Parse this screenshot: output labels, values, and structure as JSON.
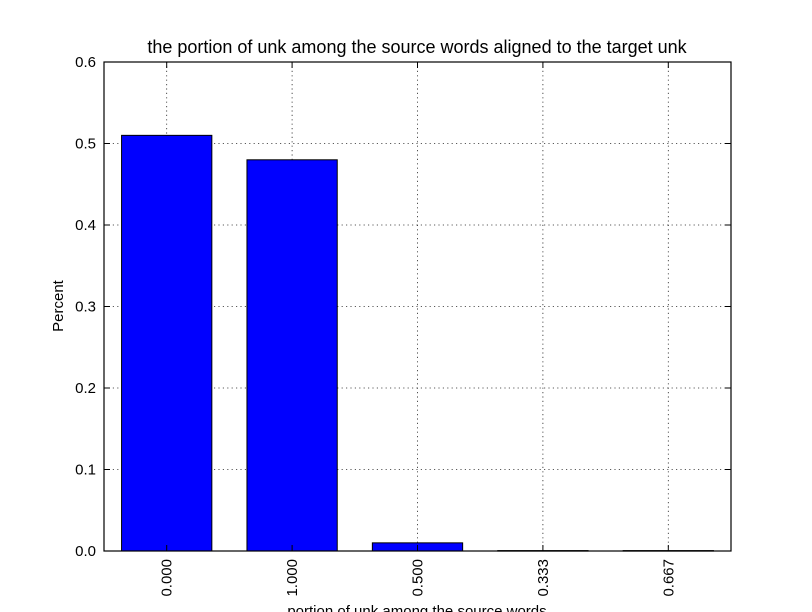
{
  "chart_data": {
    "type": "bar",
    "title": "the portion of unk among the source words aligned to the target unk",
    "xlabel": "portion of unk among the source words",
    "ylabel": "Percent",
    "categories": [
      "0.000",
      "1.000",
      "0.500",
      "0.333",
      "0.667"
    ],
    "values": [
      0.51,
      0.48,
      0.01,
      0.0005,
      0.0005
    ],
    "ylim": [
      0,
      0.6
    ],
    "yticks": [
      "0.0",
      "0.1",
      "0.2",
      "0.3",
      "0.4",
      "0.5",
      "0.6"
    ],
    "grid": true,
    "legend": "none",
    "bar_color": "#0000ff"
  }
}
